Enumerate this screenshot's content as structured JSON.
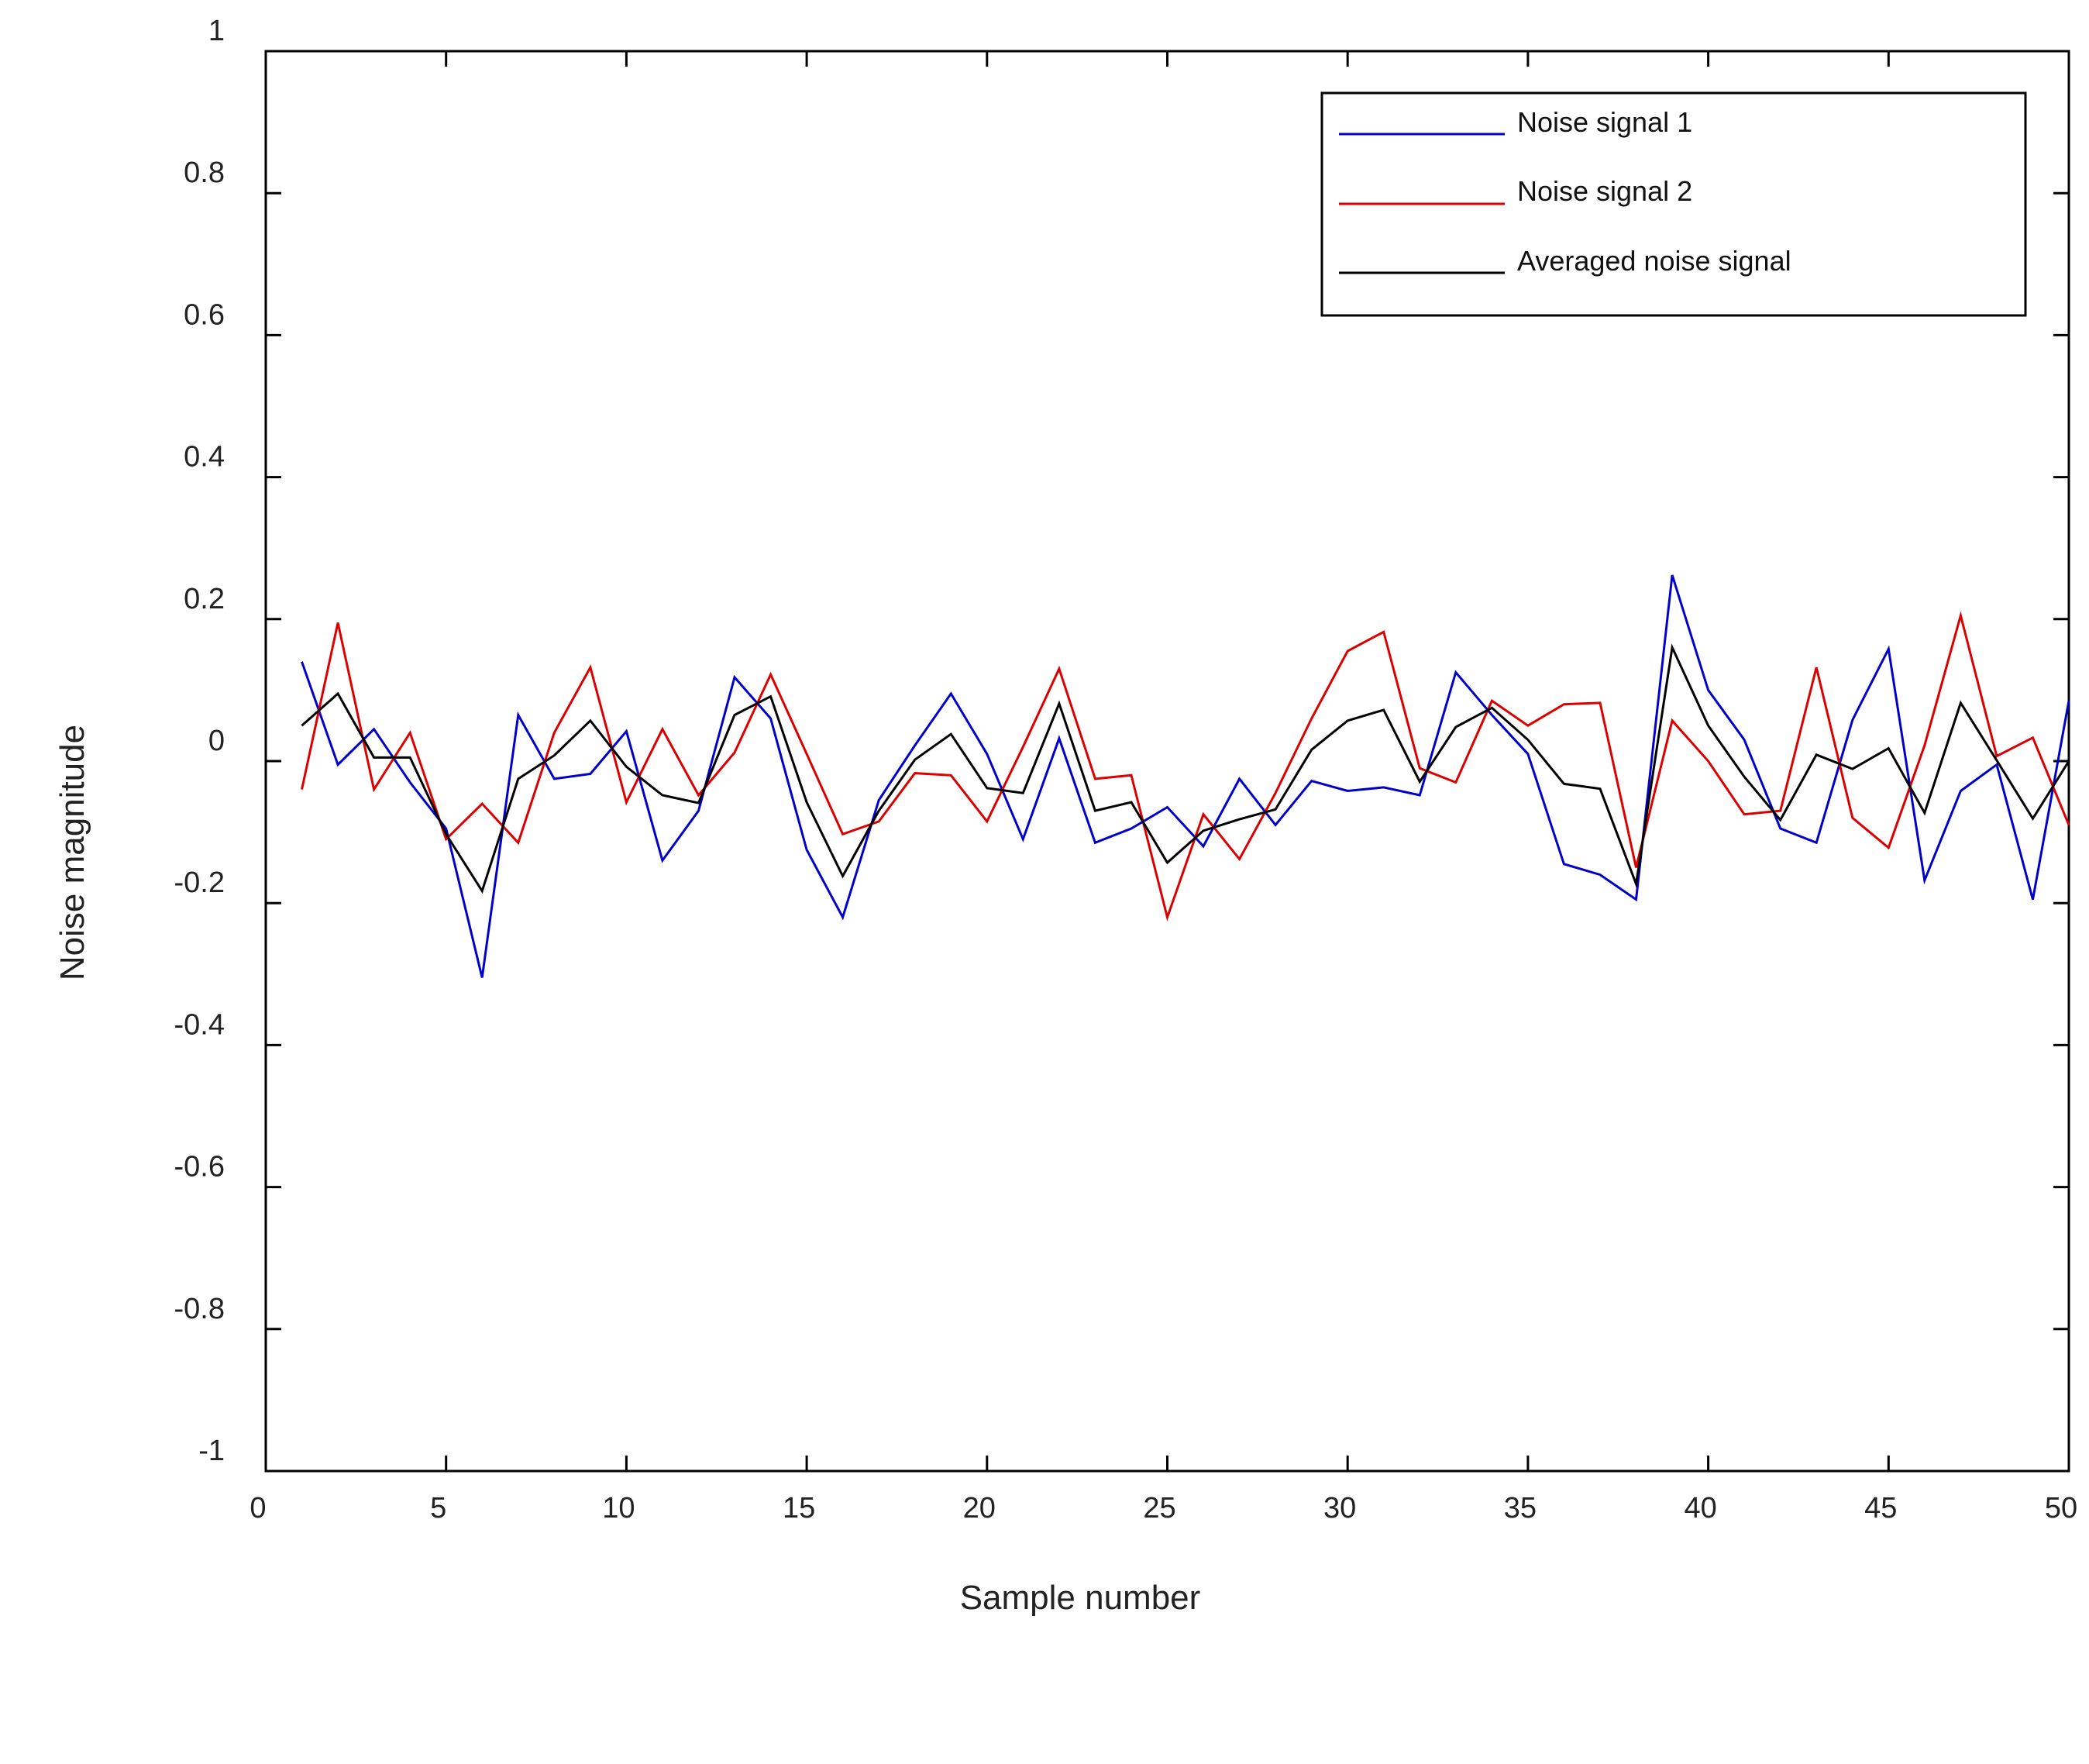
{
  "chart_data": {
    "type": "line",
    "xlabel": "Sample number",
    "ylabel": "Noise magnitude",
    "xlim": [
      0,
      50
    ],
    "ylim": [
      -1,
      1
    ],
    "xticks": [
      0,
      5,
      10,
      15,
      20,
      25,
      30,
      35,
      40,
      45,
      50
    ],
    "yticks": [
      -1,
      -0.8,
      -0.6,
      -0.4,
      -0.2,
      0,
      0.2,
      0.4,
      0.6,
      0.8,
      1
    ],
    "xtick_labels": [
      "0",
      "5",
      "10",
      "15",
      "20",
      "25",
      "30",
      "35",
      "40",
      "45",
      "50"
    ],
    "ytick_labels": [
      "-1",
      "-0.8",
      "-0.6",
      "-0.4",
      "-0.2",
      "0",
      "0.2",
      "0.4",
      "0.6",
      "0.8",
      "1"
    ],
    "grid": false,
    "legend_position": "top-right",
    "x": [
      1,
      2,
      3,
      4,
      5,
      6,
      7,
      8,
      9,
      10,
      11,
      12,
      13,
      14,
      15,
      16,
      17,
      18,
      19,
      20,
      21,
      22,
      23,
      24,
      25,
      26,
      27,
      28,
      29,
      30,
      31,
      32,
      33,
      34,
      35,
      36,
      37,
      38,
      39,
      40,
      41,
      42,
      43,
      44,
      45,
      46,
      47,
      48,
      49,
      50
    ],
    "series": [
      {
        "name": "Noise signal 1",
        "color": "#0000cc",
        "values": [
          0.14,
          -0.005,
          0.045,
          -0.03,
          -0.095,
          -0.305,
          0.065,
          -0.025,
          -0.018,
          0.042,
          -0.14,
          -0.07,
          0.118,
          0.06,
          -0.125,
          -0.22,
          -0.055,
          0.022,
          0.095,
          0.01,
          -0.11,
          0.032,
          -0.115,
          -0.095,
          -0.065,
          -0.12,
          -0.025,
          -0.09,
          -0.028,
          -0.042,
          -0.037,
          -0.048,
          0.125,
          0.065,
          0.01,
          -0.145,
          -0.16,
          -0.195,
          0.262,
          0.1,
          0.03,
          -0.095,
          -0.115,
          0.058,
          0.158,
          -0.168,
          -0.042,
          -0.005,
          -0.195,
          0.085
        ]
      },
      {
        "name": "Noise signal 2",
        "color": "#dd0000",
        "values": [
          -0.04,
          0.195,
          -0.04,
          0.04,
          -0.11,
          -0.06,
          -0.115,
          0.04,
          0.132,
          -0.058,
          0.045,
          -0.048,
          0.012,
          0.122,
          0.01,
          -0.103,
          -0.085,
          -0.017,
          -0.02,
          -0.085,
          0.02,
          0.13,
          -0.025,
          -0.02,
          -0.22,
          -0.075,
          -0.138,
          -0.045,
          0.06,
          0.155,
          0.182,
          -0.01,
          -0.03,
          0.085,
          0.05,
          0.08,
          0.082,
          -0.15,
          0.057,
          0,
          -0.075,
          -0.07,
          0.132,
          -0.08,
          -0.122,
          0.022,
          0.205,
          0.007,
          0.033,
          -0.09
        ]
      },
      {
        "name": "Averaged noise signal",
        "color": "#000000",
        "values": [
          0.05,
          0.095,
          0.005,
          0.005,
          -0.103,
          -0.183,
          -0.025,
          0.008,
          0.057,
          -0.008,
          -0.048,
          -0.059,
          0.065,
          0.091,
          -0.058,
          -0.162,
          -0.07,
          0.002,
          0.038,
          -0.038,
          -0.045,
          0.081,
          -0.07,
          -0.058,
          -0.143,
          -0.098,
          -0.082,
          -0.068,
          0.016,
          0.057,
          0.072,
          -0.029,
          0.048,
          0.075,
          0.03,
          -0.032,
          -0.039,
          -0.173,
          0.16,
          0.05,
          -0.022,
          -0.083,
          0.009,
          -0.011,
          0.018,
          -0.073,
          0.082,
          0.001,
          -0.081,
          0
        ]
      }
    ]
  }
}
